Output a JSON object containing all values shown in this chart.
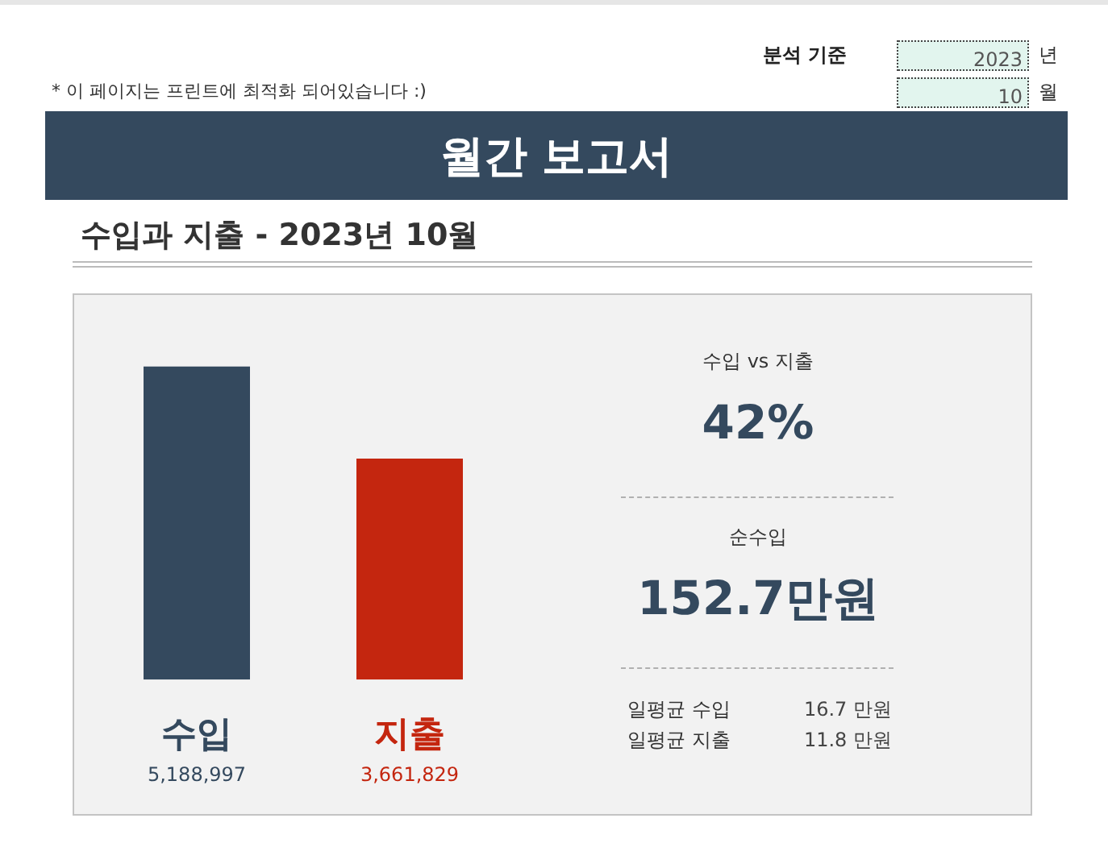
{
  "chart_data": [
    {
      "type": "bar",
      "title": "월간 보고서",
      "subtitle": "수입과 지출 - 2023년 10월",
      "annotations": [
        "분석 기준",
        "2023",
        "년",
        "10",
        "월",
        "* 이 페이지는 프린트에 최적화 되어있습니다 :)"
      ],
      "categories": [
        "수입",
        "지출"
      ],
      "values": [
        5188997,
        3661829
      ],
      "colors": [
        "#34495e",
        "#c4260f"
      ],
      "value_labels": [
        "5,188,997",
        "3,661,829"
      ],
      "tick_labels": "x"
    },
    {
      "type": "other",
      "annotations": [
        "수입 vs 지출",
        "42%",
        "순수입",
        "152.7만원",
        "일평균 수입",
        "16.7 만원",
        "일평균 지출",
        "11.8 만원"
      ]
    }
  ]
}
